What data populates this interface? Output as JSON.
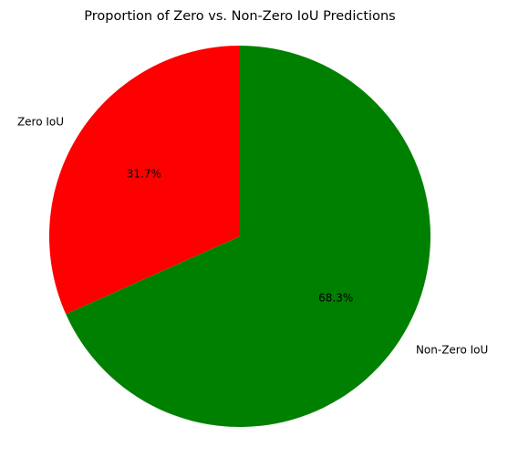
{
  "chart_data": {
    "type": "pie",
    "title": "Proportion of Zero vs. Non-Zero IoU Predictions",
    "slices": [
      {
        "label": "Zero IoU",
        "value": 31.7,
        "pct_label": "31.7%",
        "color": "#ff0000"
      },
      {
        "label": "Non-Zero IoU",
        "value": 68.3,
        "pct_label": "68.3%",
        "color": "#008000"
      }
    ],
    "start_angle_deg": 90,
    "direction": "counterclockwise",
    "legend": "none"
  }
}
